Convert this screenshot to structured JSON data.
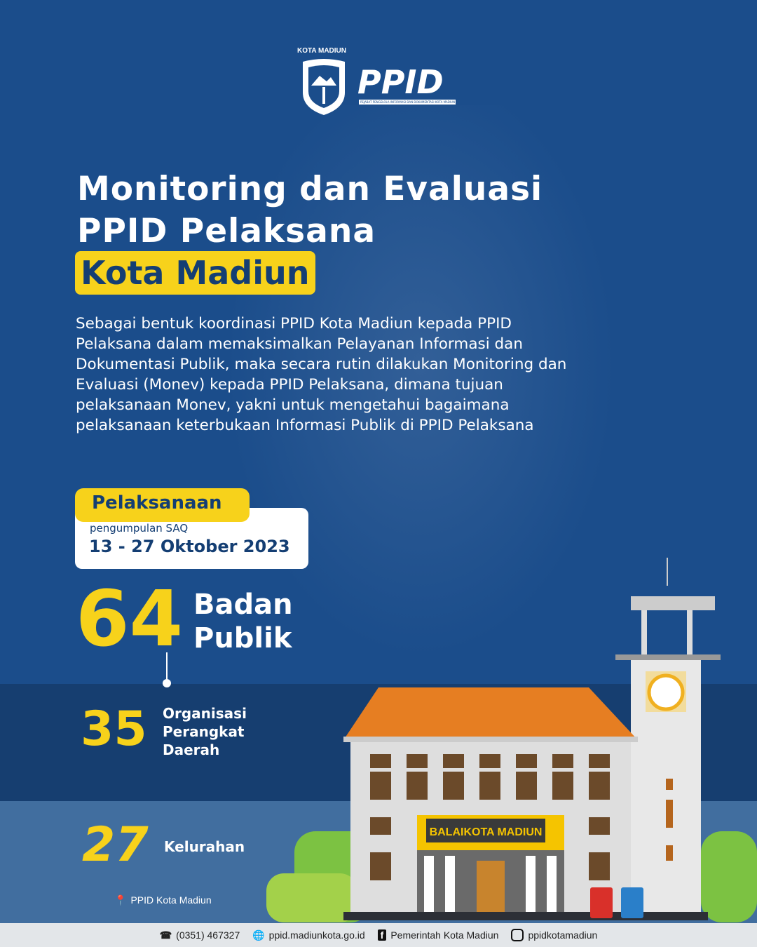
{
  "logo": {
    "kota_label": "KOTA MADIUN",
    "ppid": "PPID",
    "ppid_tagline": "PEJABAT PENGELOLA INFORMASI DAN DOKUMENTASI KOTA MADIUN"
  },
  "title": {
    "line1": "Monitoring dan Evaluasi",
    "line2": "PPID Pelaksana",
    "highlight": "Kota Madiun"
  },
  "description": "Sebagai bentuk koordinasi PPID Kota Madiun kepada PPID Pelaksana dalam memaksimalkan Pelayanan Informasi dan Dokumentasi Publik, maka secara rutin dilakukan Monitoring dan Evaluasi (Monev) kepada PPID Pelaksana, dimana tujuan pelaksanaan Monev, yakni untuk mengetahui bagaimana pelaksanaan keterbukaan Informasi Publik di PPID Pelaksana",
  "schedule": {
    "label": "Pelaksanaan",
    "sub": "pengumpulan SAQ",
    "date": "13 - 27 Oktober 2023"
  },
  "stats": {
    "total": {
      "value": "64",
      "label1": "Badan",
      "label2": "Publik"
    },
    "opd": {
      "value": "35",
      "label1": "Organisasi",
      "label2": "Perangkat",
      "label3": "Daerah"
    },
    "kelurahan": {
      "value": "27",
      "label": "Kelurahan"
    }
  },
  "credit": "PPID Kota Madiun",
  "building_sign": "BALAIKOTA MADIUN",
  "footer": {
    "phone": "(0351) 467327",
    "website": "ppid.madiunkota.go.id",
    "facebook": "Pemerintah Kota Madiun",
    "instagram": "ppidkotamadiun"
  },
  "colors": {
    "background": "#1b4d8b",
    "accent": "#f7d21b",
    "band_dark": "#163e70",
    "band_light": "#416e9f"
  }
}
